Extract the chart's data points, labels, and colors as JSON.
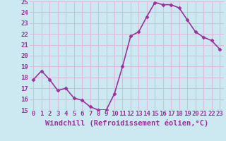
{
  "x": [
    0,
    1,
    2,
    3,
    4,
    5,
    6,
    7,
    8,
    9,
    10,
    11,
    12,
    13,
    14,
    15,
    16,
    17,
    18,
    19,
    20,
    21,
    22,
    23
  ],
  "y": [
    17.8,
    18.6,
    17.8,
    16.8,
    17.0,
    16.1,
    15.9,
    15.3,
    15.0,
    15.0,
    16.5,
    19.0,
    21.8,
    22.2,
    23.6,
    24.9,
    24.7,
    24.7,
    24.4,
    23.3,
    22.2,
    21.7,
    21.4,
    20.6
  ],
  "line_color": "#993399",
  "marker": "D",
  "marker_size": 2.5,
  "bg_color": "#cce8f0",
  "grid_color": "#ddbbdd",
  "xlabel": "Windchill (Refroidissement éolien,°C)",
  "xlabel_color": "#993399",
  "ylim": [
    15,
    25
  ],
  "xlim": [
    -0.5,
    23.5
  ],
  "yticks": [
    15,
    16,
    17,
    18,
    19,
    20,
    21,
    22,
    23,
    24,
    25
  ],
  "xtick_labels": [
    "0",
    "1",
    "2",
    "3",
    "4",
    "5",
    "6",
    "7",
    "8",
    "9",
    "10",
    "11",
    "12",
    "13",
    "14",
    "15",
    "16",
    "17",
    "18",
    "19",
    "20",
    "21",
    "22",
    "23"
  ],
  "tick_color": "#993399",
  "tick_fontsize": 6.5,
  "xlabel_fontsize": 7.5,
  "line_width": 1.2
}
